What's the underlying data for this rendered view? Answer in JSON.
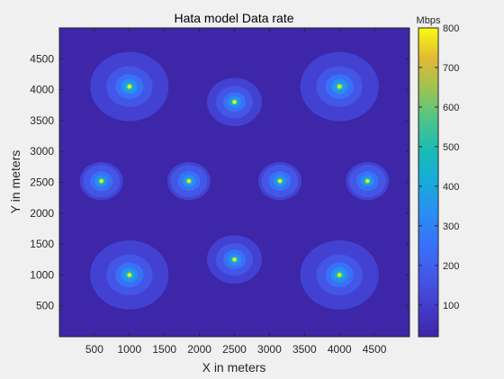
{
  "chart_data": {
    "type": "heatmap",
    "title": "Hata model Data rate",
    "xlabel": "X in meters",
    "ylabel": "Y in meters",
    "xlim": [
      0,
      5000
    ],
    "ylim": [
      0,
      5000
    ],
    "xticks": [
      500,
      1000,
      1500,
      2000,
      2500,
      3000,
      3500,
      4000,
      4500
    ],
    "yticks": [
      500,
      1000,
      1500,
      2000,
      2500,
      3000,
      3500,
      4000,
      4500
    ],
    "colorbar": {
      "unit": "Mbps",
      "range": [
        20,
        800
      ],
      "ticks": [
        100,
        200,
        300,
        400,
        500,
        600,
        700,
        800
      ],
      "colormap": "parula"
    },
    "background_value": 20,
    "transmitters": [
      {
        "x": 1000,
        "y": 4050,
        "peak": 800
      },
      {
        "x": 2500,
        "y": 3800,
        "peak": 800
      },
      {
        "x": 4000,
        "y": 4050,
        "peak": 800
      },
      {
        "x": 600,
        "y": 2520,
        "peak": 800
      },
      {
        "x": 1850,
        "y": 2520,
        "peak": 800
      },
      {
        "x": 3150,
        "y": 2520,
        "peak": 800
      },
      {
        "x": 4400,
        "y": 2520,
        "peak": 800
      },
      {
        "x": 1000,
        "y": 1000,
        "peak": 800
      },
      {
        "x": 2500,
        "y": 1250,
        "peak": 800
      },
      {
        "x": 4000,
        "y": 1000,
        "peak": 800
      }
    ]
  }
}
